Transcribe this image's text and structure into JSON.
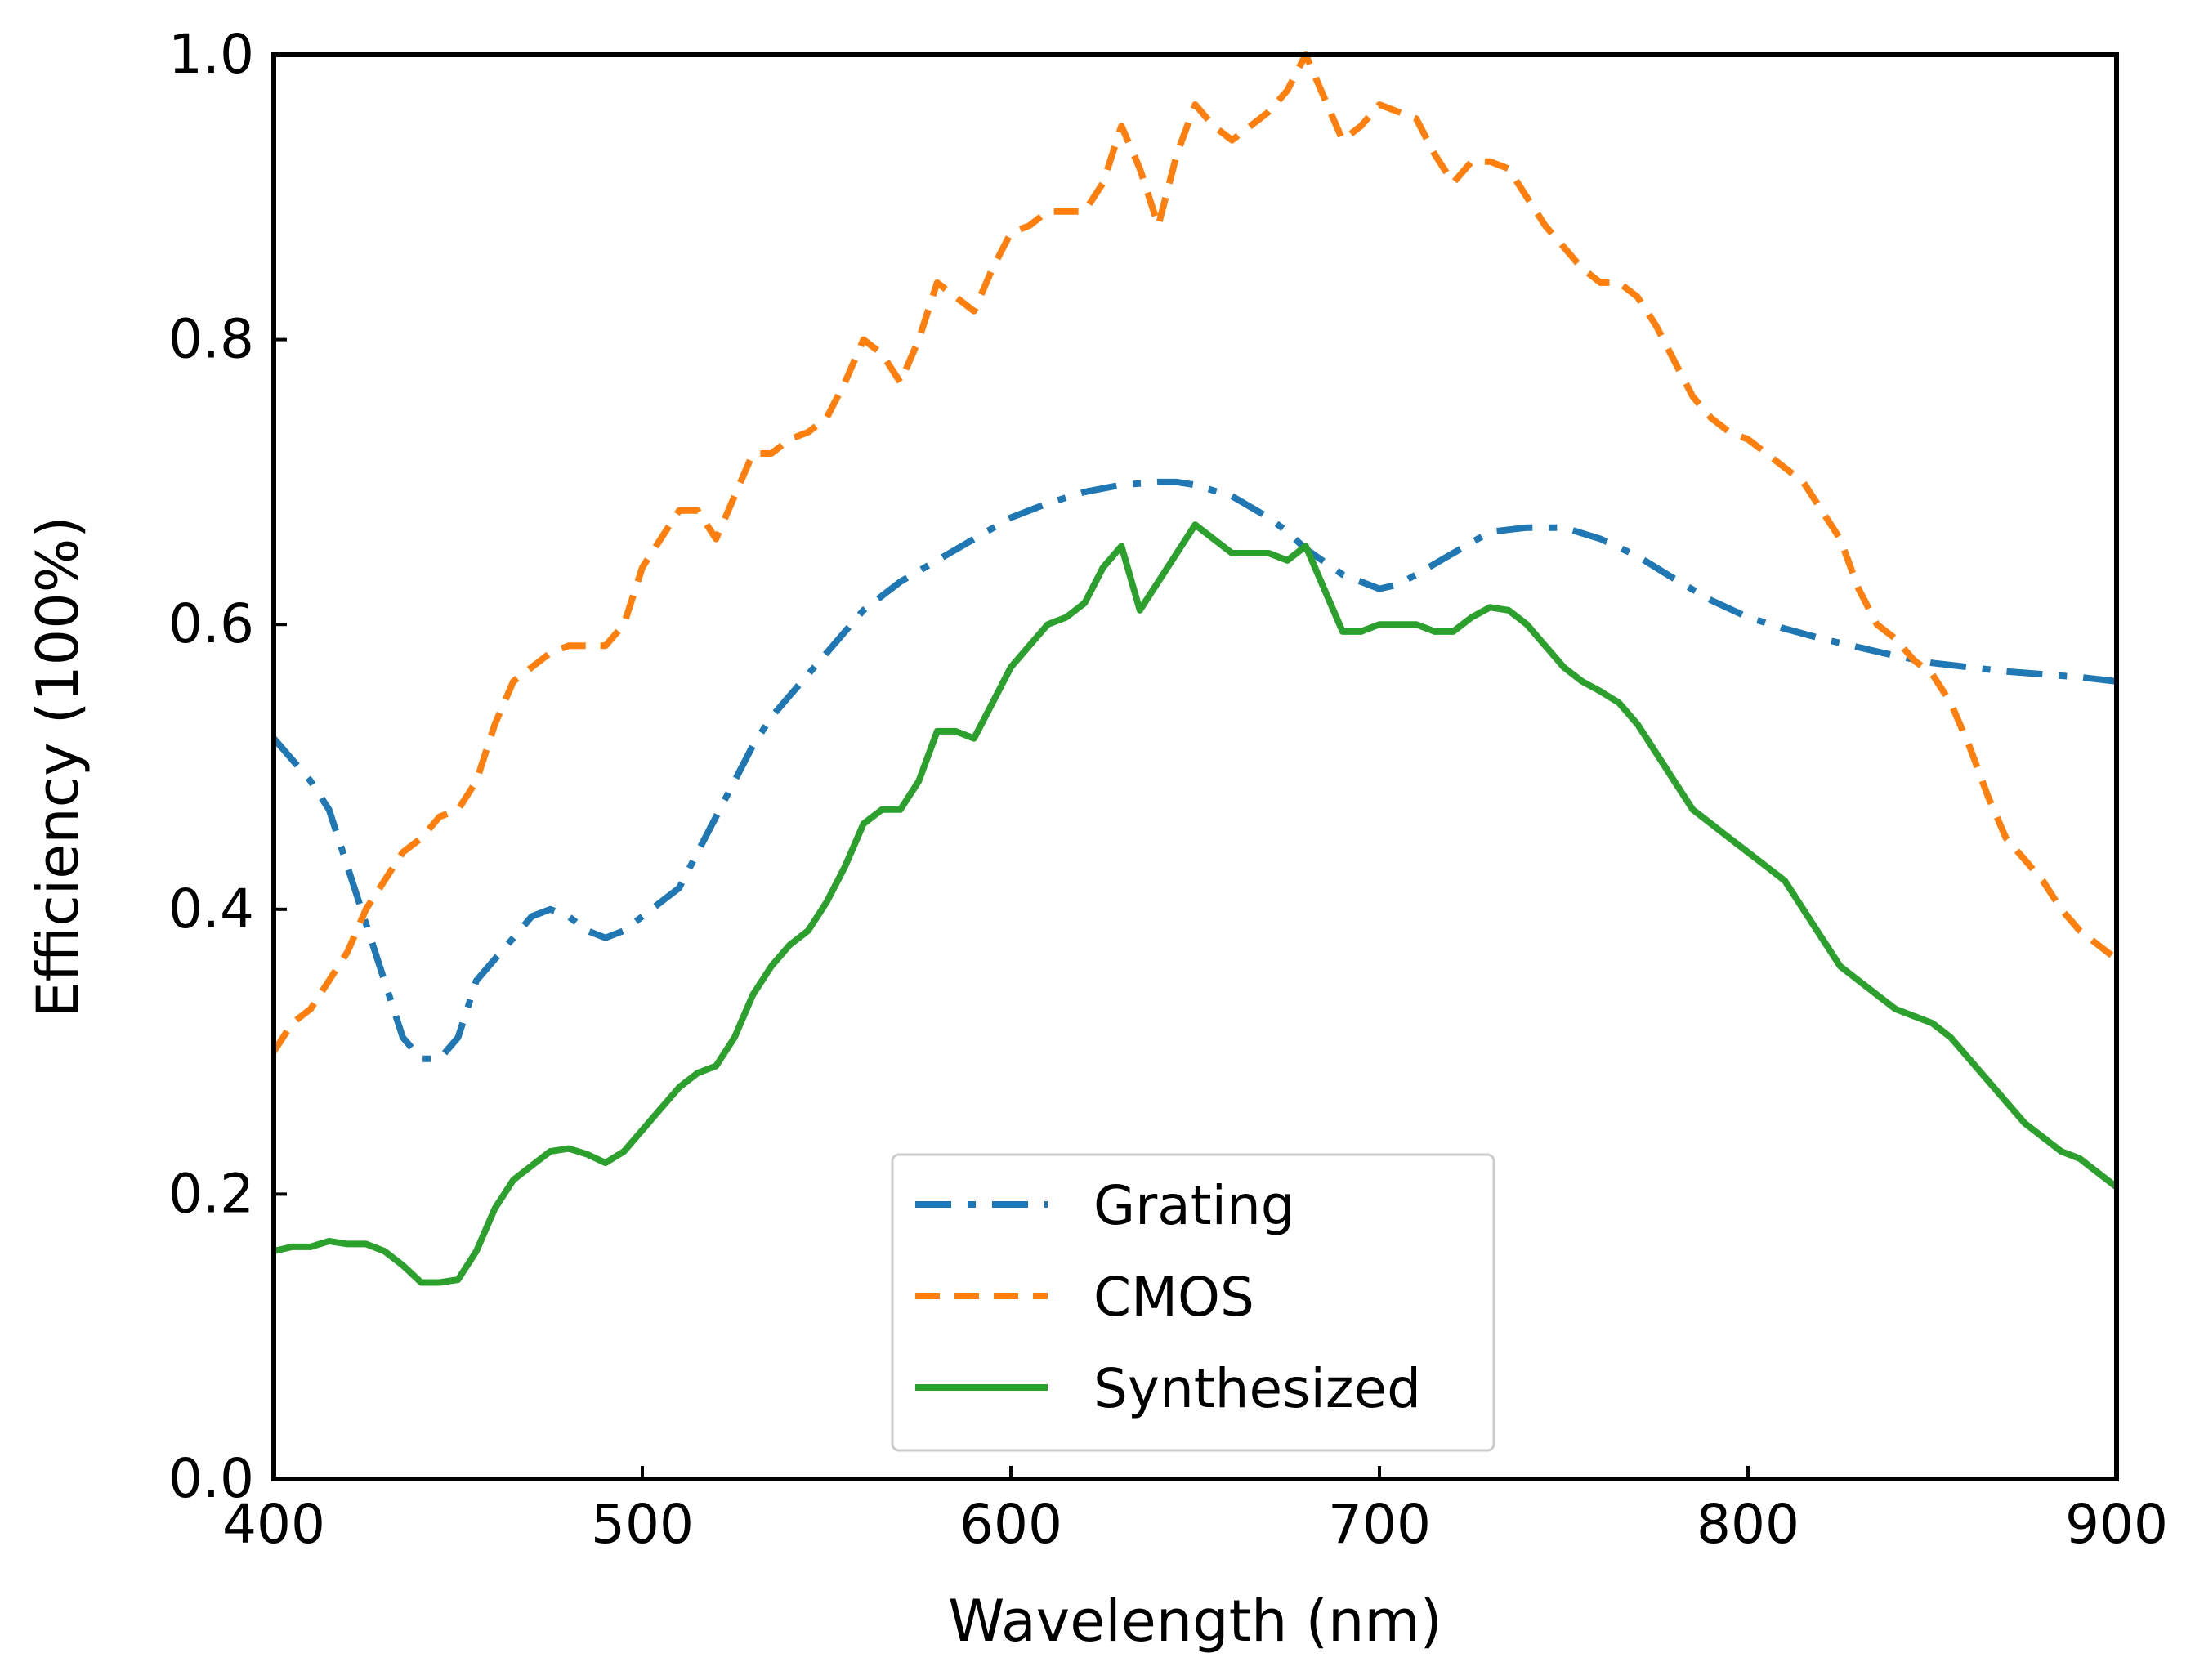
{
  "chart_data": {
    "type": "line",
    "title": "",
    "xlabel": "Wavelength (nm)",
    "ylabel": "Efficiency (100%)",
    "xlim": [
      400,
      900
    ],
    "ylim": [
      0.0,
      1.0
    ],
    "xticks": [
      400,
      500,
      600,
      700,
      800,
      900
    ],
    "xtick_labels": [
      "400",
      "500",
      "600",
      "700",
      "800",
      "900"
    ],
    "yticks": [
      0.0,
      0.2,
      0.4,
      0.6,
      0.8,
      1.0
    ],
    "ytick_labels": [
      "0.0",
      "0.2",
      "0.4",
      "0.6",
      "0.8",
      "1.0"
    ],
    "grid": false,
    "legend_position": "bottom-center",
    "series": [
      {
        "name": "Grating",
        "color": "#1f77b4",
        "style": "dashdot",
        "x": [
          400,
          410,
          415,
          420,
          425,
          430,
          435,
          440,
          445,
          450,
          455,
          460,
          465,
          470,
          475,
          480,
          485,
          490,
          495,
          500,
          505,
          510,
          515,
          520,
          525,
          530,
          535,
          540,
          545,
          550,
          560,
          570,
          580,
          590,
          600,
          610,
          620,
          630,
          640,
          645,
          650,
          660,
          670,
          675,
          680,
          690,
          700,
          705,
          710,
          720,
          730,
          740,
          750,
          760,
          770,
          780,
          790,
          800,
          810,
          820,
          830,
          840,
          850,
          860,
          870,
          880,
          890,
          900
        ],
        "y": [
          0.52,
          0.49,
          0.47,
          0.43,
          0.39,
          0.35,
          0.31,
          0.295,
          0.295,
          0.31,
          0.35,
          0.365,
          0.38,
          0.395,
          0.4,
          0.395,
          0.385,
          0.38,
          0.385,
          0.395,
          0.405,
          0.415,
          0.44,
          0.465,
          0.49,
          0.515,
          0.535,
          0.55,
          0.565,
          0.58,
          0.61,
          0.63,
          0.645,
          0.66,
          0.675,
          0.685,
          0.693,
          0.698,
          0.7,
          0.7,
          0.698,
          0.69,
          0.675,
          0.665,
          0.653,
          0.635,
          0.625,
          0.628,
          0.635,
          0.65,
          0.665,
          0.668,
          0.668,
          0.66,
          0.648,
          0.632,
          0.617,
          0.605,
          0.597,
          0.59,
          0.584,
          0.578,
          0.573,
          0.57,
          0.567,
          0.565,
          0.563,
          0.56
        ]
      },
      {
        "name": "CMOS",
        "color": "#ff7f0e",
        "style": "dashed",
        "x": [
          400,
          405,
          410,
          415,
          420,
          425,
          430,
          435,
          440,
          445,
          450,
          455,
          460,
          465,
          470,
          475,
          480,
          485,
          490,
          495,
          500,
          505,
          510,
          515,
          520,
          525,
          530,
          535,
          540,
          545,
          550,
          555,
          560,
          565,
          570,
          575,
          580,
          585,
          590,
          595,
          600,
          605,
          610,
          615,
          620,
          625,
          630,
          635,
          640,
          645,
          650,
          655,
          660,
          665,
          670,
          675,
          680,
          685,
          690,
          695,
          700,
          705,
          710,
          715,
          720,
          725,
          730,
          735,
          740,
          745,
          750,
          755,
          760,
          765,
          770,
          775,
          780,
          785,
          790,
          795,
          800,
          805,
          810,
          815,
          820,
          825,
          830,
          835,
          840,
          845,
          850,
          855,
          860,
          865,
          870,
          875,
          880,
          885,
          890,
          895,
          900
        ],
        "y": [
          0.3,
          0.32,
          0.33,
          0.35,
          0.37,
          0.4,
          0.42,
          0.44,
          0.45,
          0.465,
          0.47,
          0.49,
          0.53,
          0.56,
          0.57,
          0.58,
          0.585,
          0.585,
          0.585,
          0.6,
          0.64,
          0.66,
          0.68,
          0.68,
          0.66,
          0.69,
          0.72,
          0.72,
          0.73,
          0.735,
          0.745,
          0.77,
          0.8,
          0.79,
          0.77,
          0.8,
          0.84,
          0.83,
          0.82,
          0.85,
          0.875,
          0.88,
          0.89,
          0.89,
          0.89,
          0.91,
          0.95,
          0.92,
          0.88,
          0.93,
          0.965,
          0.95,
          0.94,
          0.95,
          0.96,
          0.975,
          1.0,
          0.97,
          0.94,
          0.95,
          0.965,
          0.96,
          0.955,
          0.93,
          0.91,
          0.925,
          0.925,
          0.92,
          0.9,
          0.88,
          0.865,
          0.85,
          0.84,
          0.84,
          0.83,
          0.81,
          0.785,
          0.76,
          0.745,
          0.735,
          0.73,
          0.72,
          0.71,
          0.7,
          0.68,
          0.66,
          0.625,
          0.6,
          0.59,
          0.575,
          0.565,
          0.545,
          0.515,
          0.48,
          0.45,
          0.435,
          0.42,
          0.4,
          0.385,
          0.375,
          0.365
        ]
      },
      {
        "name": "Synthesized",
        "color": "#2ca02c",
        "style": "solid",
        "x": [
          400,
          405,
          410,
          415,
          420,
          425,
          430,
          435,
          440,
          445,
          450,
          455,
          460,
          465,
          470,
          475,
          480,
          485,
          490,
          495,
          500,
          505,
          510,
          515,
          520,
          525,
          530,
          535,
          540,
          545,
          550,
          555,
          560,
          565,
          570,
          575,
          580,
          585,
          590,
          595,
          600,
          605,
          610,
          615,
          620,
          625,
          630,
          635,
          640,
          645,
          650,
          655,
          660,
          665,
          670,
          675,
          680,
          685,
          690,
          695,
          700,
          705,
          710,
          715,
          720,
          725,
          730,
          735,
          740,
          745,
          750,
          755,
          760,
          765,
          770,
          775,
          780,
          785,
          790,
          795,
          800,
          805,
          810,
          815,
          820,
          825,
          830,
          835,
          840,
          845,
          850,
          855,
          860,
          865,
          870,
          875,
          880,
          885,
          890,
          895,
          900
        ],
        "y": [
          0.16,
          0.163,
          0.163,
          0.167,
          0.165,
          0.165,
          0.16,
          0.15,
          0.138,
          0.138,
          0.14,
          0.16,
          0.19,
          0.21,
          0.22,
          0.23,
          0.232,
          0.228,
          0.222,
          0.23,
          0.245,
          0.26,
          0.275,
          0.285,
          0.29,
          0.31,
          0.34,
          0.36,
          0.375,
          0.385,
          0.405,
          0.43,
          0.46,
          0.47,
          0.47,
          0.49,
          0.525,
          0.525,
          0.52,
          0.545,
          0.57,
          0.585,
          0.6,
          0.605,
          0.615,
          0.64,
          0.655,
          0.61,
          0.63,
          0.65,
          0.67,
          0.66,
          0.65,
          0.65,
          0.65,
          0.645,
          0.655,
          0.625,
          0.595,
          0.595,
          0.6,
          0.6,
          0.6,
          0.595,
          0.595,
          0.605,
          0.612,
          0.61,
          0.6,
          0.585,
          0.57,
          0.56,
          0.553,
          0.545,
          0.53,
          0.51,
          0.49,
          0.47,
          0.46,
          0.45,
          0.44,
          0.43,
          0.42,
          0.4,
          0.38,
          0.36,
          0.35,
          0.34,
          0.33,
          0.325,
          0.32,
          0.31,
          0.295,
          0.28,
          0.265,
          0.25,
          0.24,
          0.23,
          0.225,
          0.215,
          0.205
        ]
      }
    ]
  }
}
